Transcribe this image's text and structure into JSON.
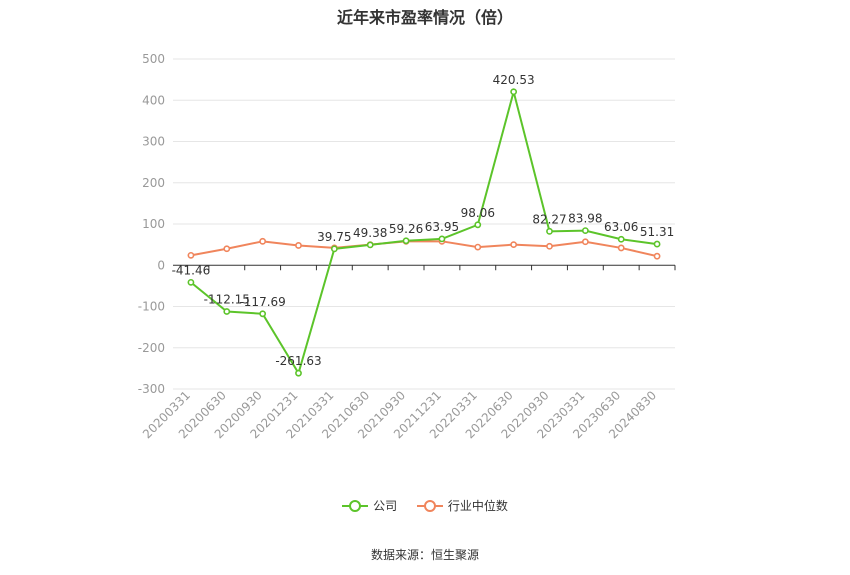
{
  "chart_data": {
    "type": "line",
    "title": "近年来市盈率情况（倍）",
    "categories": [
      "20200331",
      "20200630",
      "20200930",
      "20201231",
      "20210331",
      "20210630",
      "20210930",
      "20211231",
      "20220331",
      "20220630",
      "20220930",
      "20230331",
      "20230630",
      "20240830"
    ],
    "series": [
      {
        "name": "公司",
        "color": "#5cc42a",
        "values": [
          -41.46,
          -112.15,
          -117.69,
          -261.63,
          39.75,
          49.38,
          59.26,
          63.95,
          98.06,
          420.53,
          82.27,
          83.98,
          63.06,
          51.31
        ],
        "labels": [
          "-41.46",
          "-112.15",
          "-117.69",
          "-261.63",
          "39.75",
          "49.38",
          "59.26",
          "63.95",
          "98.06",
          "420.53",
          "82.27",
          "83.98",
          "63.06",
          "51.31"
        ]
      },
      {
        "name": "行业中位数",
        "color": "#f0855c",
        "values": [
          24,
          40,
          58,
          48,
          42,
          50,
          58,
          58,
          44,
          50,
          46,
          57,
          42,
          22
        ]
      }
    ],
    "yticks": [
      500,
      400,
      300,
      200,
      100,
      0,
      -100,
      -200,
      -300
    ],
    "ylim": [
      -300,
      500
    ],
    "grid": true,
    "legend": "bottom-center"
  },
  "source": "数据来源：恒生聚源"
}
